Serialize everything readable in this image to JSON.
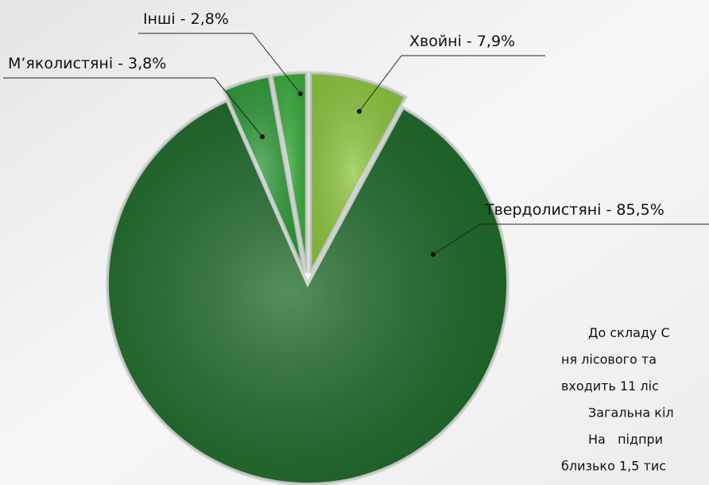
{
  "chart_data": {
    "type": "pie",
    "values": [
      85.5,
      7.9,
      3.8,
      2.8
    ],
    "value_labels": [
      "Твердолистяні - 85,5%",
      "Хвойні - 7,9%",
      "М’яколистяні - 3,8%",
      "Інші - 2,8%"
    ],
    "colors": [
      "#1e6a2a",
      "#8dc63f",
      "#2f9a3a",
      "#3aac3c"
    ],
    "annotations": [
      "До складу С",
      "ня лісового та",
      "входить 11 ліс",
      "Загальна кіл",
      "На   підпри",
      "близько 1,5 тис"
    ]
  }
}
